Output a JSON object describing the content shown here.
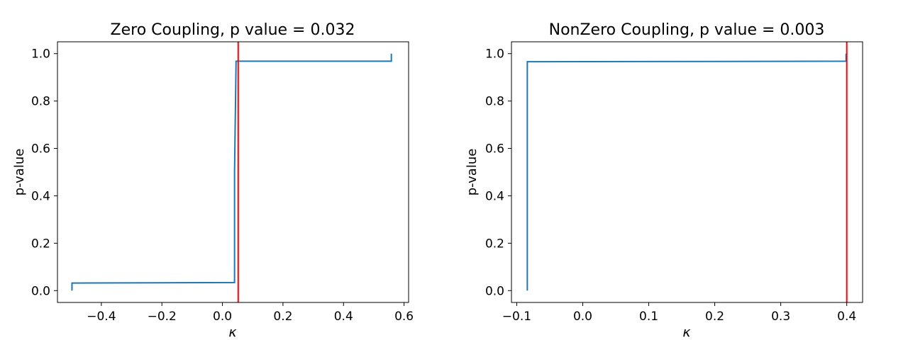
{
  "chart_data": [
    {
      "type": "line",
      "title": "Zero Coupling, p value = 0.032",
      "xlabel": "κ",
      "ylabel": "p-value",
      "xlim": [
        -0.545,
        0.615
      ],
      "ylim": [
        -0.05,
        1.05
      ],
      "xticks": [
        -0.4,
        -0.2,
        0.0,
        0.2,
        0.4,
        0.6
      ],
      "xtick_labels": [
        "−0.4",
        "−0.2",
        "0.0",
        "0.2",
        "0.4",
        "0.6"
      ],
      "yticks": [
        0.0,
        0.2,
        0.4,
        0.6,
        0.8,
        1.0
      ],
      "ytick_labels": [
        "0.0",
        "0.2",
        "0.4",
        "0.6",
        "0.8",
        "1.0"
      ],
      "grid": false,
      "series": [
        {
          "color": "#1f77b4",
          "x": [
            -0.497,
            -0.497,
            0.04,
            0.04,
            0.045,
            0.045,
            0.558,
            0.558
          ],
          "y": [
            0.0,
            0.032,
            0.034,
            0.5,
            0.966,
            0.968,
            0.968,
            1.0
          ]
        }
      ],
      "vlines": [
        {
          "x": 0.052,
          "color": "#ff0000"
        }
      ]
    },
    {
      "type": "line",
      "title": "NonZero Coupling, p value = 0.003",
      "xlabel": "κ",
      "ylabel": "p-value",
      "xlim": [
        -0.108,
        0.424
      ],
      "ylim": [
        -0.05,
        1.05
      ],
      "xticks": [
        -0.1,
        0.0,
        0.1,
        0.2,
        0.3,
        0.4
      ],
      "xtick_labels": [
        "−0.1",
        "0.0",
        "0.1",
        "0.2",
        "0.3",
        "0.4"
      ],
      "yticks": [
        0.0,
        0.2,
        0.4,
        0.6,
        0.8,
        1.0
      ],
      "ytick_labels": [
        "0.0",
        "0.2",
        "0.4",
        "0.6",
        "0.8",
        "1.0"
      ],
      "grid": false,
      "series": [
        {
          "color": "#1f77b4",
          "x": [
            -0.084,
            -0.084,
            0.399,
            0.399
          ],
          "y": [
            0.0,
            0.966,
            0.968,
            1.0
          ]
        }
      ],
      "vlines": [
        {
          "x": 0.4,
          "color": "#ff0000"
        }
      ]
    }
  ]
}
